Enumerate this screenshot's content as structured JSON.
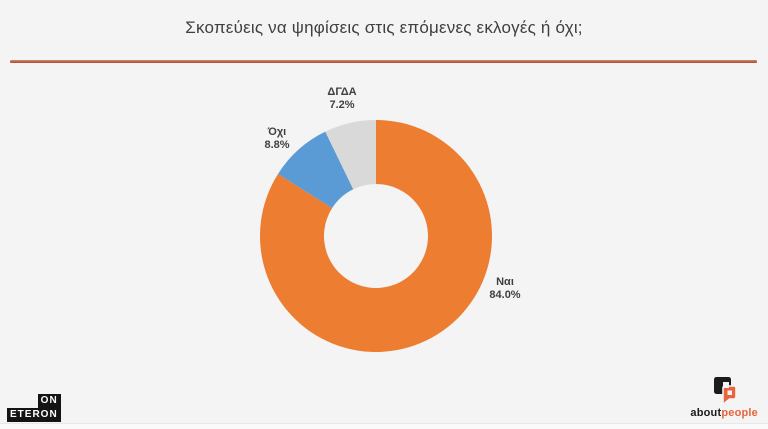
{
  "page": {
    "background": "#f5f4f5"
  },
  "header": {
    "title": "Σκοπεύεις να ψηφίσεις στις επόμενες εκλογές ή όχι;",
    "rule_color": "#a64a35"
  },
  "chart_data": {
    "type": "pie",
    "subtype": "donut",
    "title": "Σκοπεύεις να ψηφίσεις στις επόμενες εκλογές ή όχι;",
    "categories": [
      "Ναι",
      "Όχι",
      "ΔΓΔΑ"
    ],
    "values": [
      84.0,
      8.8,
      7.2
    ],
    "value_labels": [
      "84.0%",
      "8.8%",
      "7.2%"
    ],
    "colors": [
      "#ED7D31",
      "#5B9BD5",
      "#D9D9D9"
    ],
    "start_angle_deg": 0,
    "direction": "clockwise",
    "inner_radius_ratio": 0.45,
    "legend": "none",
    "labels_outside": true
  },
  "footer": {
    "eteron": {
      "line1": "ON",
      "line2": "ETERON"
    },
    "aboutpeople": {
      "about": "about",
      "people": "people",
      "brand_black": "#1a1a1a",
      "brand_orange": "#e8643c"
    }
  }
}
